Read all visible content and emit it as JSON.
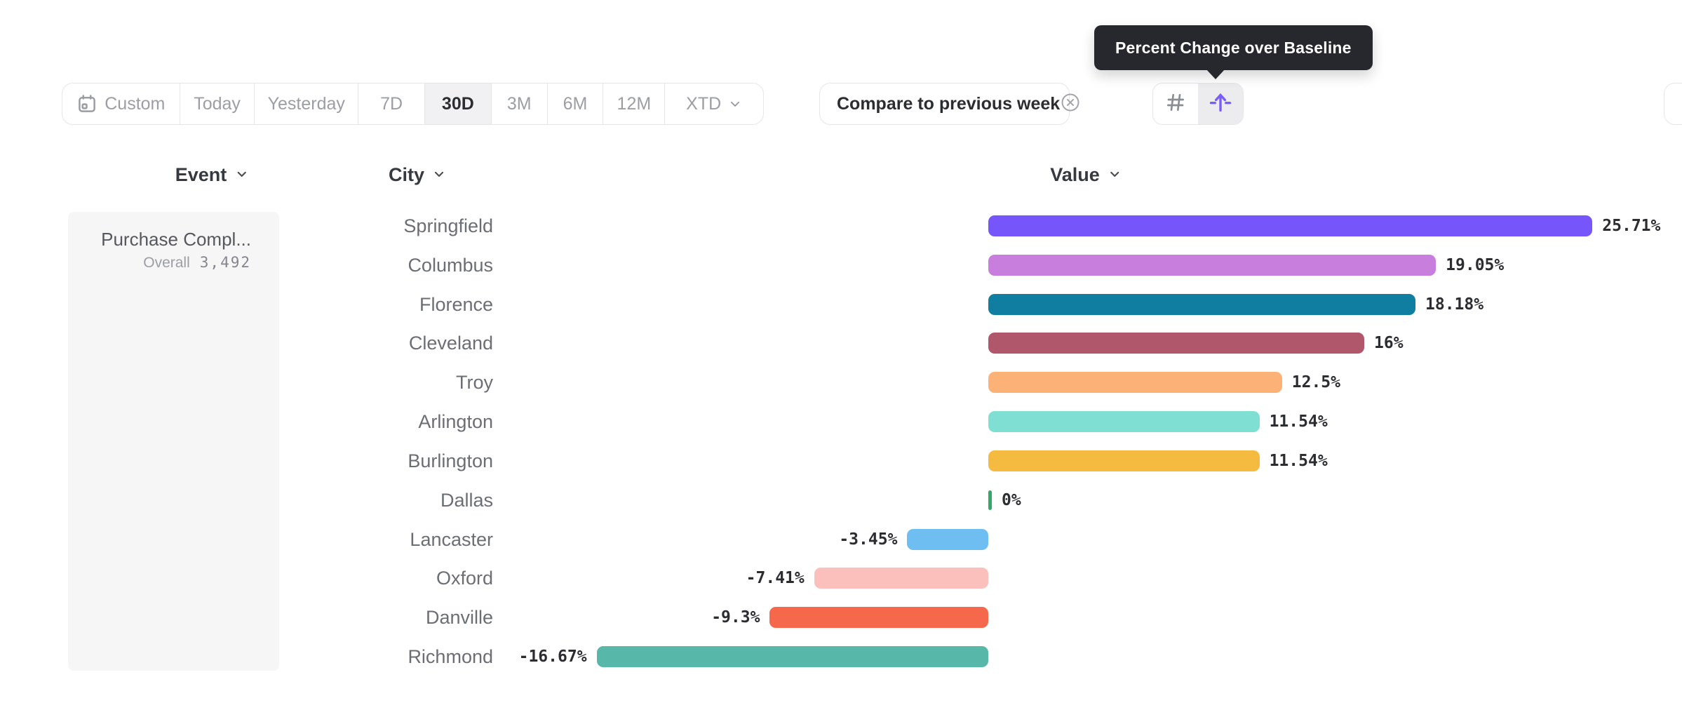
{
  "tooltip": {
    "text": "Percent Change over Baseline"
  },
  "toolbar": {
    "date_ranges": [
      {
        "label": "Custom",
        "icon": "calendar-icon",
        "selected": false
      },
      {
        "label": "Today",
        "selected": false
      },
      {
        "label": "Yesterday",
        "selected": false
      },
      {
        "label": "7D",
        "selected": false
      },
      {
        "label": "30D",
        "selected": true
      },
      {
        "label": "3M",
        "selected": false
      },
      {
        "label": "6M",
        "selected": false
      },
      {
        "label": "12M",
        "selected": false
      },
      {
        "label": "XTD",
        "trailing_icon": "chevron-down-icon",
        "selected": false
      }
    ],
    "compare": {
      "label": "Compare to previous week",
      "icon": "circle-x-icon"
    },
    "view_toggle": [
      {
        "name": "numbers",
        "icon": "hash-icon",
        "selected": false
      },
      {
        "name": "percent-change-over-baseline",
        "icon": "arrow-up-baseline-icon",
        "selected": true,
        "accent": "#7B5CFA"
      }
    ]
  },
  "table": {
    "headers": {
      "event": "Event",
      "city": "City",
      "value": "Value"
    },
    "event_card": {
      "title": "Purchase Compl...",
      "overall_label": "Overall",
      "overall_value": "3,492"
    }
  },
  "chart_data": {
    "type": "bar",
    "orientation": "horizontal",
    "title": "Percent Change over Baseline",
    "xlabel": "Value",
    "ylabel": "City",
    "baseline": 0,
    "xlim": [
      -16.67,
      25.71
    ],
    "categories": [
      "Springfield",
      "Columbus",
      "Florence",
      "Cleveland",
      "Troy",
      "Arlington",
      "Burlington",
      "Dallas",
      "Lancaster",
      "Oxford",
      "Danville",
      "Richmond"
    ],
    "values": [
      25.71,
      19.05,
      18.18,
      16,
      12.5,
      11.54,
      11.54,
      0,
      -3.45,
      -7.41,
      -9.3,
      -16.67
    ],
    "labels": [
      "25.71%",
      "19.05%",
      "18.18%",
      "16%",
      "12.5%",
      "11.54%",
      "11.54%",
      "0%",
      "-3.45%",
      "-7.41%",
      "-9.3%",
      "-16.67%"
    ],
    "colors": [
      "#7656FA",
      "#C77EDC",
      "#0F7EA0",
      "#B0576C",
      "#FCB177",
      "#7FDFD3",
      "#F5BB40",
      "#34A868",
      "#6FBEF2",
      "#FBC0BB",
      "#F5684C",
      "#57B8A9"
    ]
  }
}
